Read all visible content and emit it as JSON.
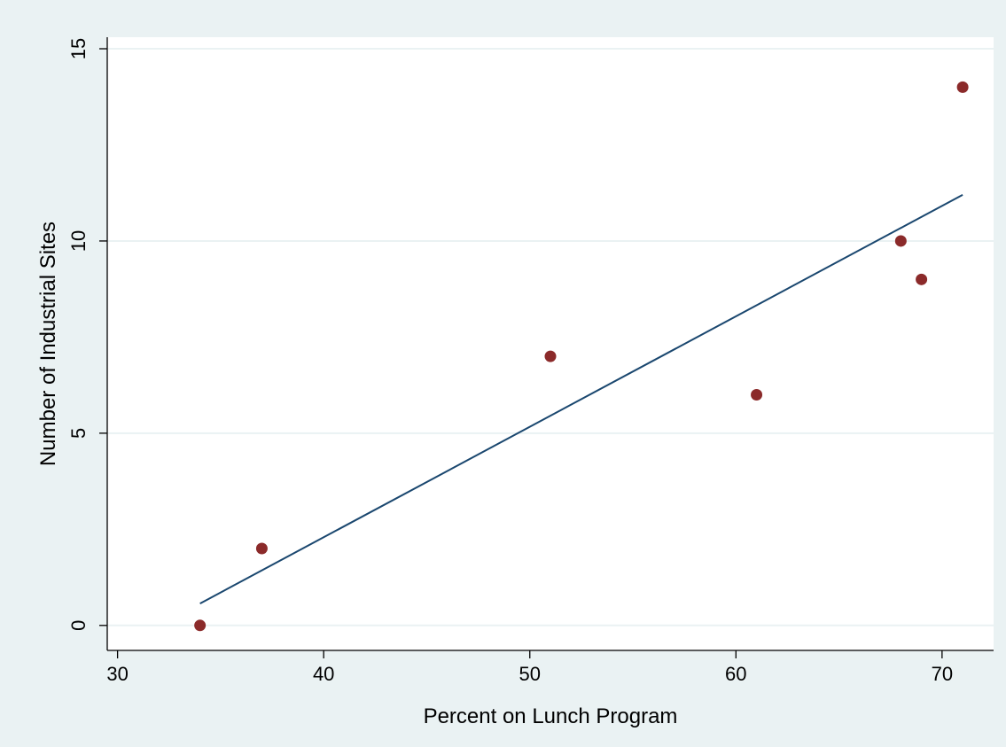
{
  "chart_data": {
    "type": "scatter",
    "title": "",
    "xlabel": "Percent on Lunch Program",
    "ylabel": "Number of Industrial Sites",
    "xlim": [
      29.5,
      72.5
    ],
    "ylim": [
      -0.65,
      15.3
    ],
    "xticks": [
      "30",
      "40",
      "50",
      "60",
      "70"
    ],
    "yticks": [
      "0",
      "5",
      "10",
      "15"
    ],
    "grid": "horizontal",
    "legend": "none",
    "series": [
      {
        "type": "scatter",
        "x": [
          34,
          37,
          51,
          61,
          68,
          69,
          71
        ],
        "y": [
          0,
          2,
          7,
          6,
          10,
          9,
          14
        ],
        "color": "#8b2a2a"
      },
      {
        "type": "line",
        "x": [
          34,
          71
        ],
        "y": [
          0.57,
          11.2
        ],
        "color": "#1a476f"
      }
    ]
  },
  "colors": {
    "background": "#eaf2f3",
    "plot_area": "#ffffff",
    "gridline": "#eaf2f3",
    "axis": "#000000"
  }
}
